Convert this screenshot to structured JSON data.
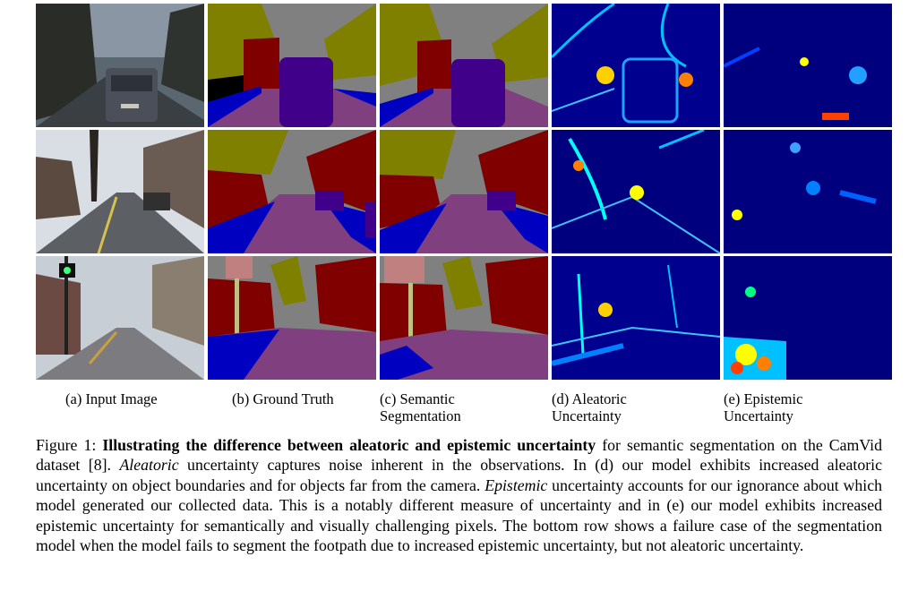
{
  "figure": {
    "columns": [
      {
        "id": "a",
        "label_line1": "(a) Input Image",
        "label_line2": ""
      },
      {
        "id": "b",
        "label_line1": "(b) Ground Truth",
        "label_line2": ""
      },
      {
        "id": "c",
        "label_line1": "(c) Semantic",
        "label_line2": "Segmentation"
      },
      {
        "id": "d",
        "label_line1": "(d) Aleatoric",
        "label_line2": "Uncertainty"
      },
      {
        "id": "e",
        "label_line1": "(e) Epistemic",
        "label_line2": "Uncertainty"
      }
    ],
    "rows": 3,
    "colors": {
      "sky": "#808080",
      "tree": "#808000",
      "building": "#800000",
      "road": "#804080",
      "pavement": "#0000c0",
      "car": "#40008a",
      "pole": "#c0c080",
      "sign": "#c08080",
      "uncertainty_low": "#00007f",
      "uncertainty_high": "#ffff00"
    }
  },
  "caption": {
    "prefix": "Figure 1: ",
    "bold": "Illustrating the difference between aleatoric and epistemic uncertainty",
    "seg1": " for semantic segmentation on the CamVid dataset [8]. ",
    "it1": "Aleatoric",
    "seg2": " uncertainty captures noise inherent in the observations. In (d) our model exhibits increased aleatoric uncertainty on object boundaries and for objects far from the camera. ",
    "it2": "Epistemic",
    "seg3": " uncertainty accounts for our ignorance about which model generated our collected data. This is a notably different measure of uncertainty and in (e) our model exhibits increased epistemic uncertainty for semantically and visually challenging pixels. The bottom row shows a failure case of the segmentation model when the model fails to segment the footpath due to increased epistemic uncertainty, but not aleatoric uncertainty."
  }
}
